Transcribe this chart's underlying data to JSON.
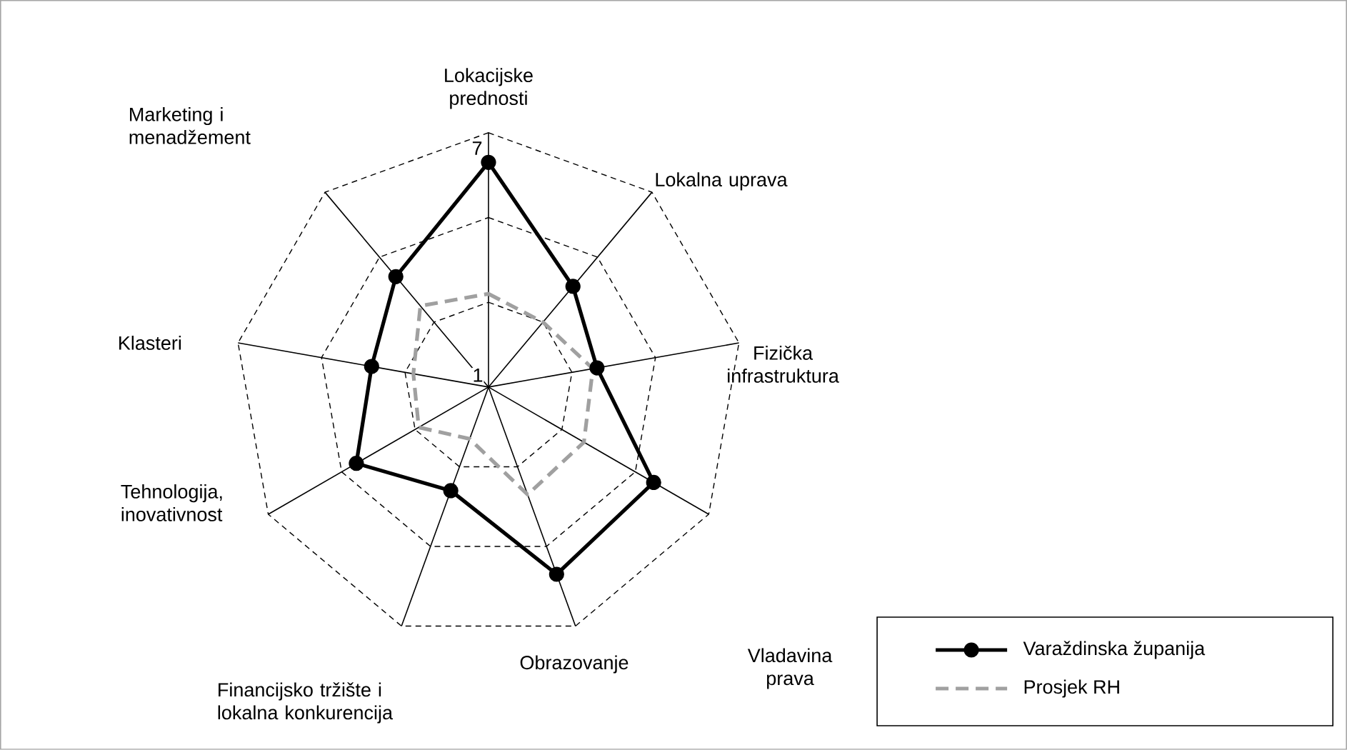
{
  "chart_data": {
    "type": "radar",
    "categories": [
      "Lokacijske prednosti",
      "Lokalna uprava",
      "Fizička infrastruktura",
      "Vladavina prava",
      "Obrazovanje",
      "Financijsko tržište i lokalna konkurencija",
      "Tehnologija, inovativnost",
      "Klasteri",
      "Marketing i menadžement"
    ],
    "series": [
      {
        "name": "Varaždinska županija",
        "color": "#000000",
        "marker": "circle",
        "line_style": "solid",
        "values": [
          6.3,
          4.1,
          3.6,
          5.5,
          5.7,
          3.6,
          4.6,
          3.8,
          4.4
        ]
      },
      {
        "name": "Prosjek RH",
        "color": "#a0a0a0",
        "marker": "none",
        "line_style": "dashed",
        "values": [
          3.2,
          3.0,
          3.5,
          3.6,
          3.7,
          2.3,
          2.9,
          2.8,
          3.5
        ]
      }
    ],
    "ylim": [
      1,
      7
    ],
    "yticks": [
      1,
      7
    ],
    "grid": true,
    "legend": "bottom right"
  }
}
